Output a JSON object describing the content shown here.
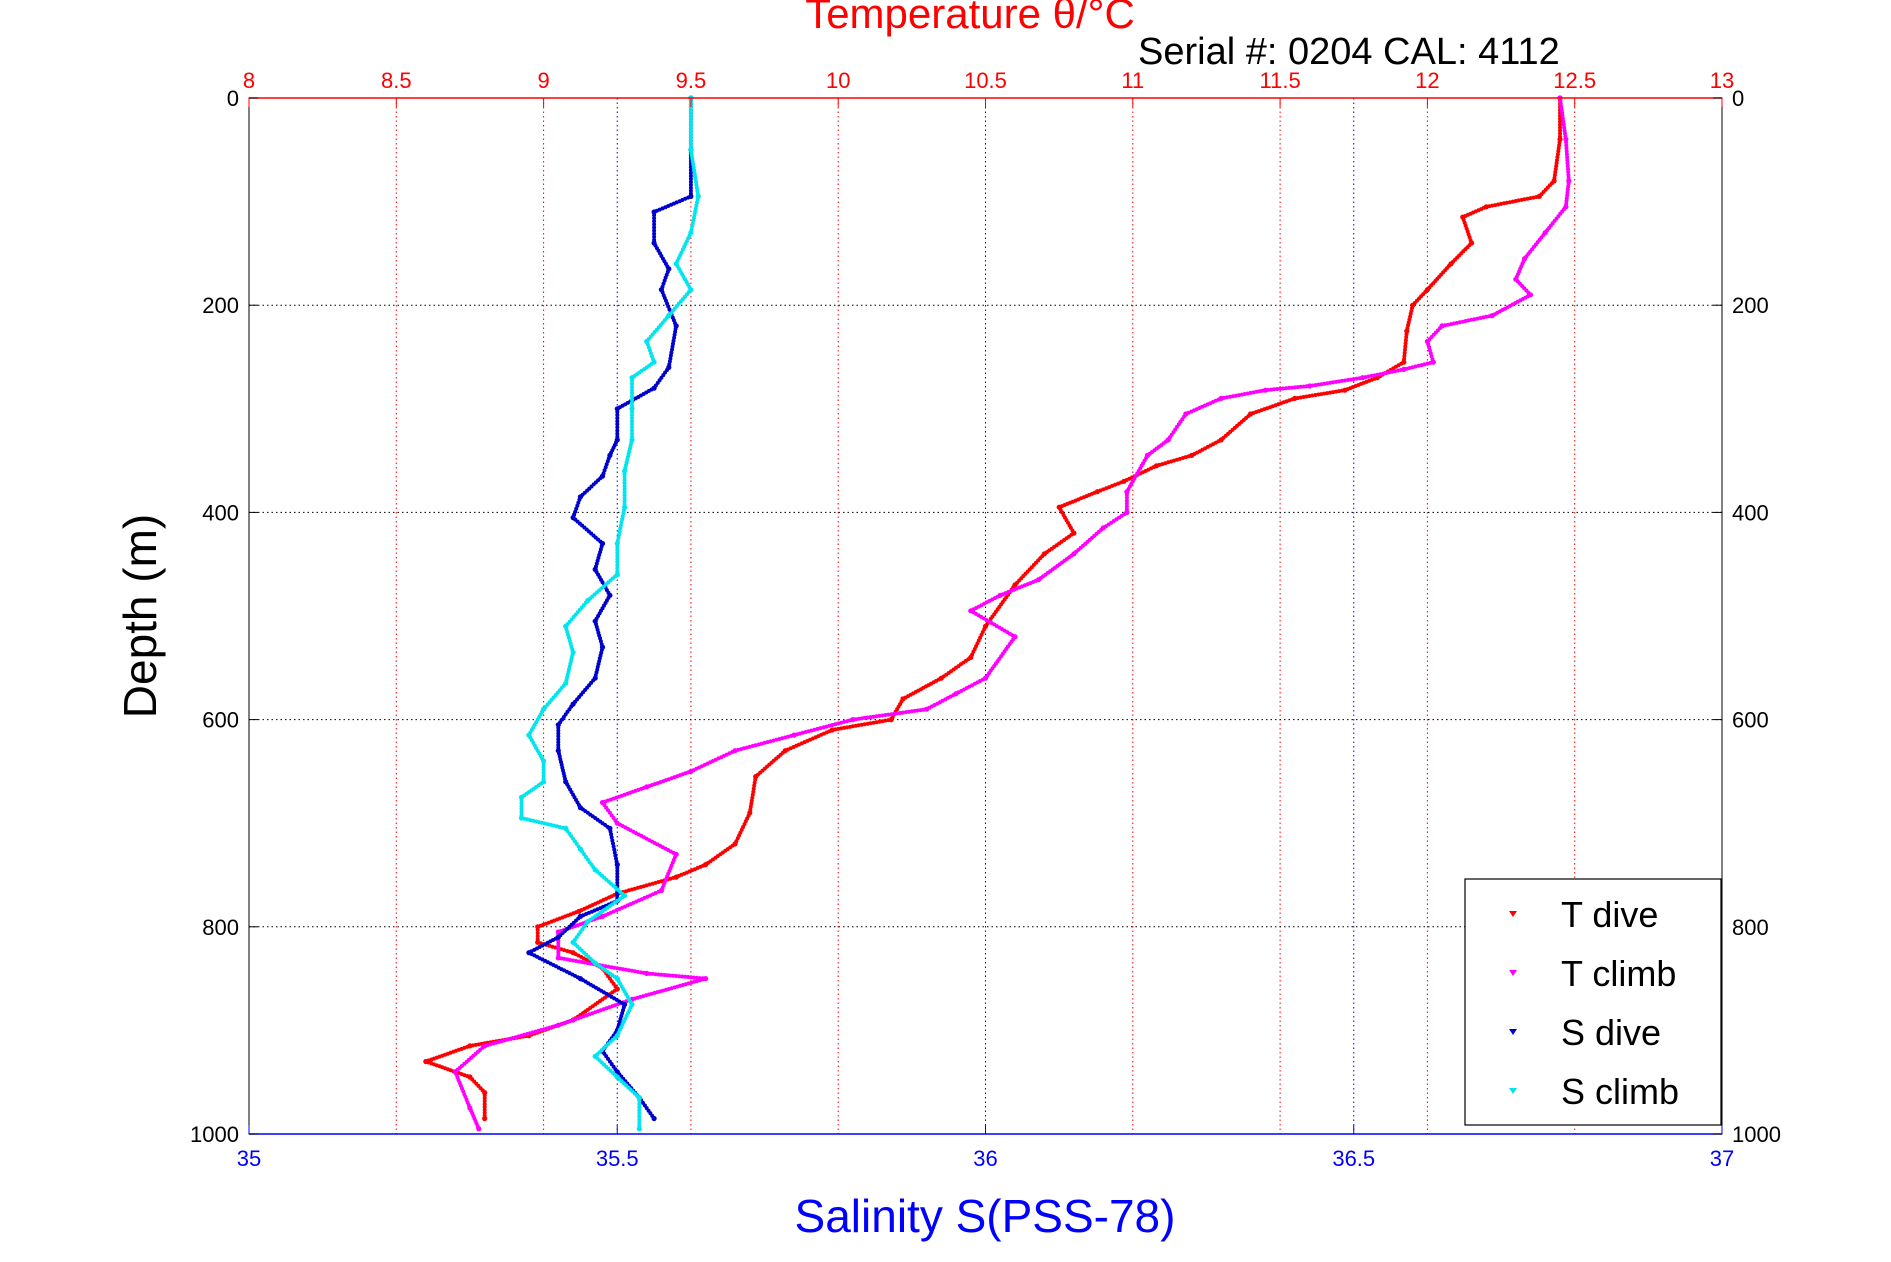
{
  "header": {
    "top_title": "Temperature θ/°C",
    "serial_text": "Serial #: 0204  CAL: 4112"
  },
  "colors": {
    "temperature_axis": "#ff0000",
    "salinity_axis": "#0000ff",
    "grid_temperature": "#ff0000",
    "grid_salinity": "#0000ff",
    "grid_depth": "#000000",
    "t_dive": "#ff0000",
    "t_climb": "#ff00ff",
    "s_dive": "#0000cc",
    "s_climb": "#00e5ee"
  },
  "chart_data": {
    "type": "scatter",
    "ylabel": "Depth (m)",
    "xlabel_bottom": "Salinity S(PSS-78)",
    "xlabel_top": "Temperature θ/°C",
    "ylim": [
      0,
      1000
    ],
    "y_reversed": true,
    "xlim_bottom": [
      35,
      37
    ],
    "xlim_top": [
      8,
      13
    ],
    "y_ticks": [
      "0",
      "200",
      "400",
      "600",
      "800",
      "1000"
    ],
    "bottom_ticks": [
      "35",
      "35.5",
      "36",
      "36.5",
      "37"
    ],
    "top_ticks": [
      "8",
      "8.5",
      "9",
      "9.5",
      "10",
      "10.5",
      "11",
      "11.5",
      "12",
      "12.5",
      "13"
    ],
    "grid": true,
    "legend_position": "bottom-right",
    "series": [
      {
        "name": "T dive",
        "axis": "top",
        "points": [
          [
            12.45,
            0
          ],
          [
            12.45,
            40
          ],
          [
            12.43,
            80
          ],
          [
            12.38,
            95
          ],
          [
            12.2,
            105
          ],
          [
            12.12,
            115
          ],
          [
            12.15,
            140
          ],
          [
            12.08,
            160
          ],
          [
            12.0,
            185
          ],
          [
            11.95,
            200
          ],
          [
            11.93,
            225
          ],
          [
            11.92,
            255
          ],
          [
            11.83,
            270
          ],
          [
            11.72,
            282
          ],
          [
            11.55,
            290
          ],
          [
            11.4,
            305
          ],
          [
            11.3,
            330
          ],
          [
            11.2,
            345
          ],
          [
            11.08,
            355
          ],
          [
            10.97,
            370
          ],
          [
            10.88,
            380
          ],
          [
            10.75,
            395
          ],
          [
            10.8,
            420
          ],
          [
            10.7,
            440
          ],
          [
            10.6,
            470
          ],
          [
            10.5,
            510
          ],
          [
            10.45,
            540
          ],
          [
            10.35,
            560
          ],
          [
            10.22,
            580
          ],
          [
            10.18,
            600
          ],
          [
            9.98,
            610
          ],
          [
            9.82,
            630
          ],
          [
            9.72,
            655
          ],
          [
            9.7,
            690
          ],
          [
            9.65,
            720
          ],
          [
            9.55,
            740
          ],
          [
            9.45,
            752
          ],
          [
            9.25,
            768
          ],
          [
            9.12,
            785
          ],
          [
            8.98,
            800
          ],
          [
            8.98,
            815
          ],
          [
            9.1,
            825
          ],
          [
            9.2,
            840
          ],
          [
            9.25,
            860
          ],
          [
            9.1,
            890
          ],
          [
            8.95,
            905
          ],
          [
            8.75,
            915
          ],
          [
            8.6,
            930
          ],
          [
            8.75,
            945
          ],
          [
            8.8,
            960
          ],
          [
            8.8,
            985
          ]
        ]
      },
      {
        "name": "T climb",
        "axis": "top",
        "points": [
          [
            12.45,
            0
          ],
          [
            12.47,
            40
          ],
          [
            12.48,
            80
          ],
          [
            12.47,
            105
          ],
          [
            12.4,
            130
          ],
          [
            12.33,
            155
          ],
          [
            12.3,
            175
          ],
          [
            12.35,
            190
          ],
          [
            12.22,
            210
          ],
          [
            12.05,
            220
          ],
          [
            12.0,
            235
          ],
          [
            12.02,
            255
          ],
          [
            11.92,
            262
          ],
          [
            11.78,
            270
          ],
          [
            11.6,
            278
          ],
          [
            11.45,
            282
          ],
          [
            11.3,
            290
          ],
          [
            11.18,
            305
          ],
          [
            11.12,
            330
          ],
          [
            11.05,
            345
          ],
          [
            10.98,
            380
          ],
          [
            10.98,
            400
          ],
          [
            10.9,
            415
          ],
          [
            10.8,
            440
          ],
          [
            10.68,
            465
          ],
          [
            10.55,
            480
          ],
          [
            10.45,
            495
          ],
          [
            10.6,
            520
          ],
          [
            10.5,
            560
          ],
          [
            10.4,
            575
          ],
          [
            10.3,
            590
          ],
          [
            10.05,
            600
          ],
          [
            9.85,
            615
          ],
          [
            9.65,
            630
          ],
          [
            9.5,
            650
          ],
          [
            9.35,
            665
          ],
          [
            9.2,
            680
          ],
          [
            9.25,
            700
          ],
          [
            9.45,
            730
          ],
          [
            9.4,
            765
          ],
          [
            9.2,
            790
          ],
          [
            9.05,
            805
          ],
          [
            9.05,
            830
          ],
          [
            9.35,
            845
          ],
          [
            9.55,
            850
          ],
          [
            9.3,
            870
          ],
          [
            9.05,
            895
          ],
          [
            8.8,
            915
          ],
          [
            8.7,
            940
          ],
          [
            8.75,
            975
          ],
          [
            8.78,
            995
          ]
        ]
      },
      {
        "name": "S dive",
        "axis": "bottom",
        "points": [
          [
            35.6,
            0
          ],
          [
            35.6,
            50
          ],
          [
            35.6,
            95
          ],
          [
            35.55,
            110
          ],
          [
            35.55,
            140
          ],
          [
            35.57,
            165
          ],
          [
            35.56,
            185
          ],
          [
            35.58,
            220
          ],
          [
            35.57,
            260
          ],
          [
            35.55,
            280
          ],
          [
            35.5,
            300
          ],
          [
            35.5,
            330
          ],
          [
            35.49,
            345
          ],
          [
            35.48,
            365
          ],
          [
            35.45,
            385
          ],
          [
            35.44,
            405
          ],
          [
            35.48,
            430
          ],
          [
            35.47,
            455
          ],
          [
            35.49,
            480
          ],
          [
            35.47,
            505
          ],
          [
            35.48,
            530
          ],
          [
            35.47,
            560
          ],
          [
            35.44,
            585
          ],
          [
            35.42,
            605
          ],
          [
            35.42,
            630
          ],
          [
            35.43,
            660
          ],
          [
            35.45,
            685
          ],
          [
            35.49,
            705
          ],
          [
            35.5,
            740
          ],
          [
            35.5,
            775
          ],
          [
            35.45,
            790
          ],
          [
            35.42,
            810
          ],
          [
            35.38,
            825
          ],
          [
            35.45,
            850
          ],
          [
            35.51,
            875
          ],
          [
            35.5,
            900
          ],
          [
            35.48,
            920
          ],
          [
            35.5,
            940
          ],
          [
            35.53,
            965
          ],
          [
            35.55,
            985
          ]
        ]
      },
      {
        "name": "S climb",
        "axis": "bottom",
        "points": [
          [
            35.6,
            0
          ],
          [
            35.6,
            50
          ],
          [
            35.61,
            95
          ],
          [
            35.6,
            130
          ],
          [
            35.58,
            160
          ],
          [
            35.6,
            185
          ],
          [
            35.57,
            210
          ],
          [
            35.54,
            235
          ],
          [
            35.55,
            255
          ],
          [
            35.52,
            270
          ],
          [
            35.52,
            300
          ],
          [
            35.52,
            330
          ],
          [
            35.51,
            360
          ],
          [
            35.51,
            395
          ],
          [
            35.5,
            430
          ],
          [
            35.5,
            460
          ],
          [
            35.46,
            485
          ],
          [
            35.43,
            510
          ],
          [
            35.44,
            535
          ],
          [
            35.43,
            565
          ],
          [
            35.4,
            590
          ],
          [
            35.38,
            615
          ],
          [
            35.4,
            640
          ],
          [
            35.4,
            660
          ],
          [
            35.37,
            675
          ],
          [
            35.37,
            695
          ],
          [
            35.43,
            705
          ],
          [
            35.45,
            725
          ],
          [
            35.47,
            745
          ],
          [
            35.51,
            770
          ],
          [
            35.46,
            795
          ],
          [
            35.44,
            815
          ],
          [
            35.47,
            835
          ],
          [
            35.5,
            850
          ],
          [
            35.52,
            875
          ],
          [
            35.5,
            905
          ],
          [
            35.47,
            925
          ],
          [
            35.5,
            945
          ],
          [
            35.53,
            965
          ],
          [
            35.53,
            995
          ]
        ]
      }
    ]
  }
}
